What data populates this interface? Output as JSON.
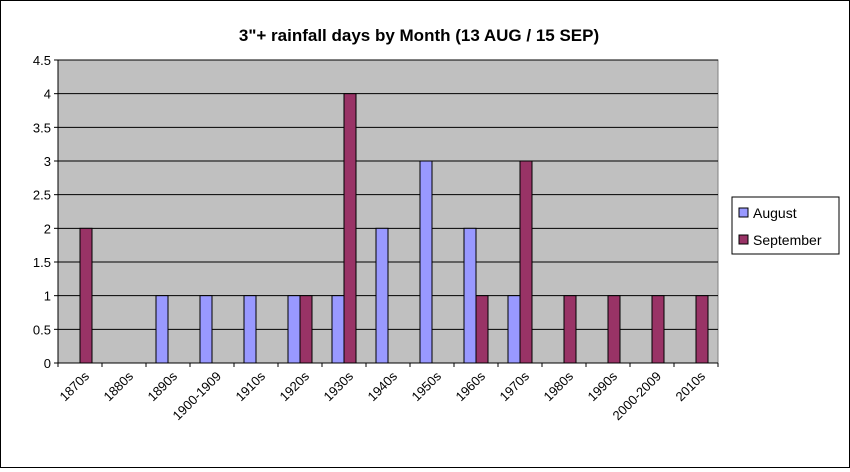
{
  "chart_data": {
    "type": "bar",
    "title": "3\"+ rainfall days by Month (13 AUG / 15 SEP)",
    "xlabel": "",
    "ylabel": "",
    "categories": [
      "1870s",
      "1880s",
      "1890s",
      "1900-1909",
      "1910s",
      "1920s",
      "1930s",
      "1940s",
      "1950s",
      "1960s",
      "1970s",
      "1980s",
      "1990s",
      "2000-2009",
      "2010s"
    ],
    "series": [
      {
        "name": "August",
        "color": "#9999ff",
        "values": [
          0,
          0,
          1,
          1,
          1,
          1,
          1,
          2,
          3,
          2,
          1,
          0,
          0,
          0,
          0
        ]
      },
      {
        "name": "September",
        "color": "#993366",
        "values": [
          2,
          0,
          0,
          0,
          0,
          1,
          4,
          0,
          0,
          1,
          3,
          1,
          1,
          1,
          1
        ]
      }
    ],
    "ylim": [
      0,
      4.5
    ],
    "yticks": [
      0,
      0.5,
      1,
      1.5,
      2,
      2.5,
      3,
      3.5,
      4,
      4.5
    ],
    "ytick_labels": [
      "0",
      "0.5",
      "1",
      "1.5",
      "2",
      "2.5",
      "3",
      "3.5",
      "4",
      "4.5"
    ],
    "grid": true,
    "plot_background": "#c0c0c0",
    "legend_position": "right"
  }
}
